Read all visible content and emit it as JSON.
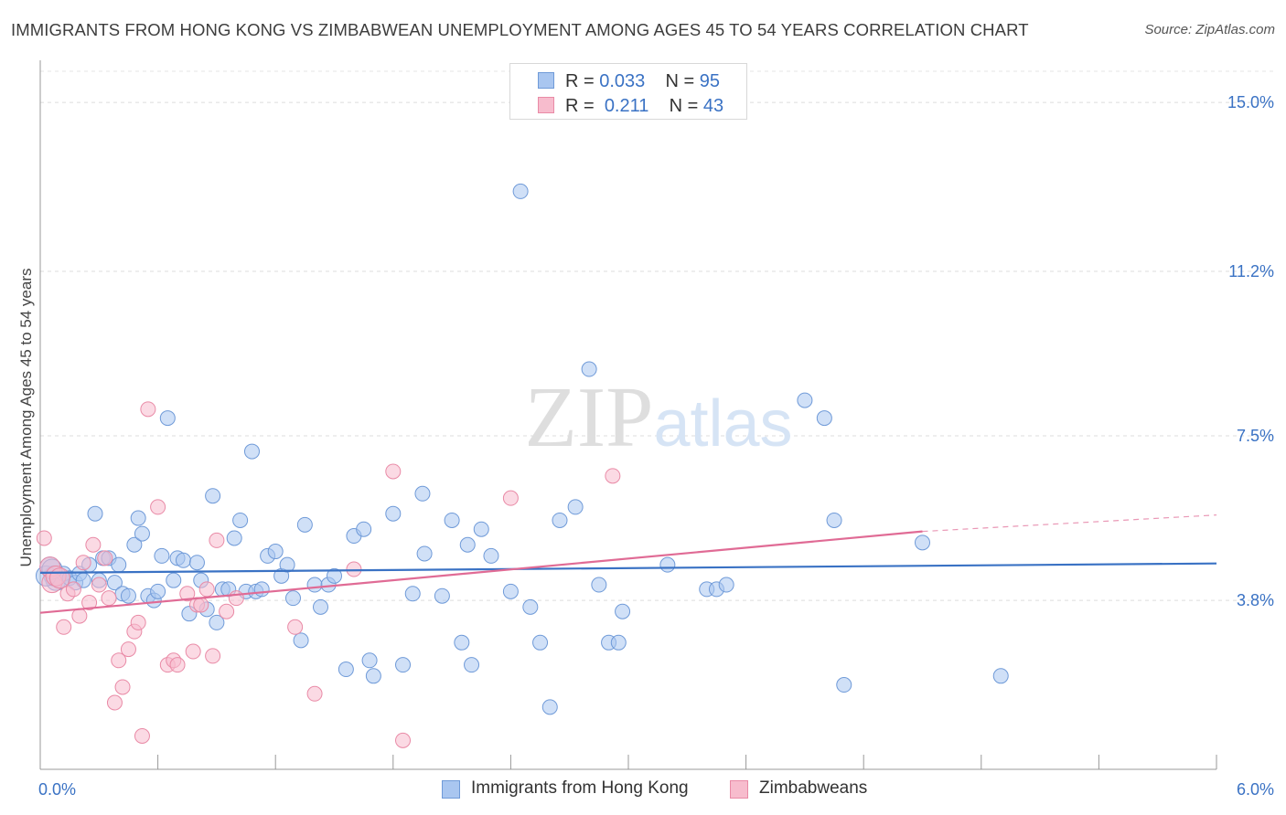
{
  "title": "IMMIGRANTS FROM HONG KONG VS ZIMBABWEAN UNEMPLOYMENT AMONG AGES 45 TO 54 YEARS CORRELATION CHART",
  "source": "Source: ZipAtlas.com",
  "watermark": "ZIPatlas",
  "legend": {
    "rows": [
      {
        "r_label": "R =",
        "r_value": "0.033",
        "n_label": "N =",
        "n_value": "95",
        "color": "#a9c6f0",
        "border": "#6f9ad8"
      },
      {
        "r_label": "R =",
        "r_value": "0.211",
        "n_label": "N =",
        "n_value": "43",
        "color": "#f7bccd",
        "border": "#e98aa6"
      }
    ]
  },
  "bottom_legend": [
    {
      "label": "Immigrants from Hong Kong",
      "color": "#a9c6f0",
      "border": "#6f9ad8"
    },
    {
      "label": "Zimbabweans",
      "color": "#f7bccd",
      "border": "#e98aa6"
    }
  ],
  "chart_data": {
    "type": "scatter",
    "title": "IMMIGRANTS FROM HONG KONG VS ZIMBABWEAN UNEMPLOYMENT AMONG AGES 45 TO 54 YEARS CORRELATION CHART",
    "xlabel": "",
    "ylabel": "Unemployment Among Ages 45 to 54 years",
    "xlim": [
      0,
      6.0
    ],
    "ylim": [
      0.0,
      15.7
    ],
    "x_tick_labels": [
      "0.0%",
      "6.0%"
    ],
    "y_ticks": [
      3.8,
      7.5,
      11.2,
      15.0
    ],
    "y_tick_labels": [
      "3.8%",
      "7.5%",
      "11.2%",
      "15.0%"
    ],
    "grid": "horizontal dashed",
    "legend_position": "top-center",
    "series": [
      {
        "name": "Immigrants from Hong Kong",
        "color": "#a9c6f0",
        "stroke": "#6f9ad8",
        "line_color": "#3a72c4",
        "trend": [
          [
            0.0,
            4.42
          ],
          [
            6.0,
            4.63
          ]
        ],
        "trend_dashed": [],
        "points": [
          [
            0.05,
            4.55
          ],
          [
            0.07,
            4.35
          ],
          [
            0.08,
            4.25
          ],
          [
            0.1,
            4.3
          ],
          [
            0.12,
            4.4
          ],
          [
            0.15,
            4.3
          ],
          [
            0.18,
            4.2
          ],
          [
            0.2,
            4.4
          ],
          [
            0.22,
            4.25
          ],
          [
            0.25,
            4.6
          ],
          [
            0.28,
            5.75
          ],
          [
            0.3,
            4.25
          ],
          [
            0.32,
            4.75
          ],
          [
            0.35,
            4.75
          ],
          [
            0.38,
            4.2
          ],
          [
            0.4,
            4.6
          ],
          [
            0.42,
            3.95
          ],
          [
            0.45,
            3.9
          ],
          [
            0.48,
            5.05
          ],
          [
            0.5,
            5.65
          ],
          [
            0.52,
            5.3
          ],
          [
            0.55,
            3.9
          ],
          [
            0.58,
            3.8
          ],
          [
            0.6,
            4.0
          ],
          [
            0.62,
            4.8
          ],
          [
            0.65,
            7.9
          ],
          [
            0.68,
            4.25
          ],
          [
            0.7,
            4.75
          ],
          [
            0.73,
            4.7
          ],
          [
            0.76,
            3.5
          ],
          [
            0.8,
            4.65
          ],
          [
            0.82,
            4.25
          ],
          [
            0.85,
            3.6
          ],
          [
            0.88,
            6.15
          ],
          [
            0.9,
            3.3
          ],
          [
            0.93,
            4.05
          ],
          [
            0.96,
            4.05
          ],
          [
            0.99,
            5.2
          ],
          [
            1.02,
            5.6
          ],
          [
            1.05,
            4.0
          ],
          [
            1.08,
            7.15
          ],
          [
            1.1,
            4.0
          ],
          [
            1.13,
            4.05
          ],
          [
            1.16,
            4.8
          ],
          [
            1.2,
            4.9
          ],
          [
            1.23,
            4.35
          ],
          [
            1.26,
            4.6
          ],
          [
            1.29,
            3.85
          ],
          [
            1.33,
            2.9
          ],
          [
            1.35,
            5.5
          ],
          [
            1.4,
            4.15
          ],
          [
            1.43,
            3.65
          ],
          [
            1.47,
            4.15
          ],
          [
            1.5,
            4.35
          ],
          [
            1.56,
            2.25
          ],
          [
            1.6,
            5.25
          ],
          [
            1.65,
            5.4
          ],
          [
            1.68,
            2.45
          ],
          [
            1.7,
            2.1
          ],
          [
            1.8,
            5.75
          ],
          [
            1.85,
            2.35
          ],
          [
            1.9,
            3.95
          ],
          [
            1.95,
            6.2
          ],
          [
            1.96,
            4.85
          ],
          [
            2.05,
            3.9
          ],
          [
            2.1,
            5.6
          ],
          [
            2.15,
            2.85
          ],
          [
            2.18,
            5.05
          ],
          [
            2.2,
            2.35
          ],
          [
            2.25,
            5.4
          ],
          [
            2.3,
            4.8
          ],
          [
            2.4,
            4.0
          ],
          [
            2.45,
            13.0
          ],
          [
            2.5,
            3.65
          ],
          [
            2.55,
            2.85
          ],
          [
            2.6,
            1.4
          ],
          [
            2.65,
            5.6
          ],
          [
            2.73,
            5.9
          ],
          [
            2.8,
            9.0
          ],
          [
            2.85,
            4.15
          ],
          [
            2.9,
            2.85
          ],
          [
            2.95,
            2.85
          ],
          [
            2.97,
            3.55
          ],
          [
            3.2,
            4.6
          ],
          [
            3.4,
            4.05
          ],
          [
            3.45,
            4.05
          ],
          [
            3.5,
            4.15
          ],
          [
            3.9,
            8.3
          ],
          [
            4.0,
            7.9
          ],
          [
            4.05,
            5.6
          ],
          [
            4.1,
            1.9
          ],
          [
            4.5,
            5.1
          ],
          [
            4.9,
            2.1
          ],
          [
            0.03,
            4.35
          ],
          [
            0.06,
            4.5
          ]
        ]
      },
      {
        "name": "Zimbabweans",
        "color": "#f7bccd",
        "stroke": "#e98aa6",
        "line_color": "#e06b95",
        "trend": [
          [
            0.0,
            3.52
          ],
          [
            4.5,
            5.35
          ]
        ],
        "trend_dashed": [
          [
            4.5,
            5.35
          ],
          [
            6.0,
            5.72
          ]
        ],
        "points": [
          [
            0.02,
            5.2
          ],
          [
            0.05,
            4.55
          ],
          [
            0.06,
            4.2
          ],
          [
            0.08,
            4.35
          ],
          [
            0.12,
            3.2
          ],
          [
            0.14,
            3.95
          ],
          [
            0.17,
            4.05
          ],
          [
            0.2,
            3.45
          ],
          [
            0.22,
            4.65
          ],
          [
            0.25,
            3.75
          ],
          [
            0.27,
            5.05
          ],
          [
            0.3,
            4.15
          ],
          [
            0.33,
            4.75
          ],
          [
            0.35,
            3.85
          ],
          [
            0.38,
            1.5
          ],
          [
            0.4,
            2.45
          ],
          [
            0.42,
            1.85
          ],
          [
            0.45,
            2.7
          ],
          [
            0.48,
            3.1
          ],
          [
            0.5,
            3.3
          ],
          [
            0.52,
            0.75
          ],
          [
            0.55,
            8.1
          ],
          [
            0.6,
            5.9
          ],
          [
            0.65,
            2.35
          ],
          [
            0.68,
            2.45
          ],
          [
            0.7,
            2.35
          ],
          [
            0.75,
            3.95
          ],
          [
            0.78,
            2.65
          ],
          [
            0.8,
            3.7
          ],
          [
            0.82,
            3.7
          ],
          [
            0.85,
            4.05
          ],
          [
            0.88,
            2.55
          ],
          [
            0.9,
            5.15
          ],
          [
            0.95,
            3.55
          ],
          [
            1.0,
            3.85
          ],
          [
            1.3,
            3.2
          ],
          [
            1.4,
            1.7
          ],
          [
            1.6,
            4.5
          ],
          [
            1.8,
            6.7
          ],
          [
            1.85,
            0.65
          ],
          [
            2.4,
            6.1
          ],
          [
            2.92,
            6.6
          ],
          [
            0.1,
            4.3
          ]
        ]
      }
    ]
  }
}
